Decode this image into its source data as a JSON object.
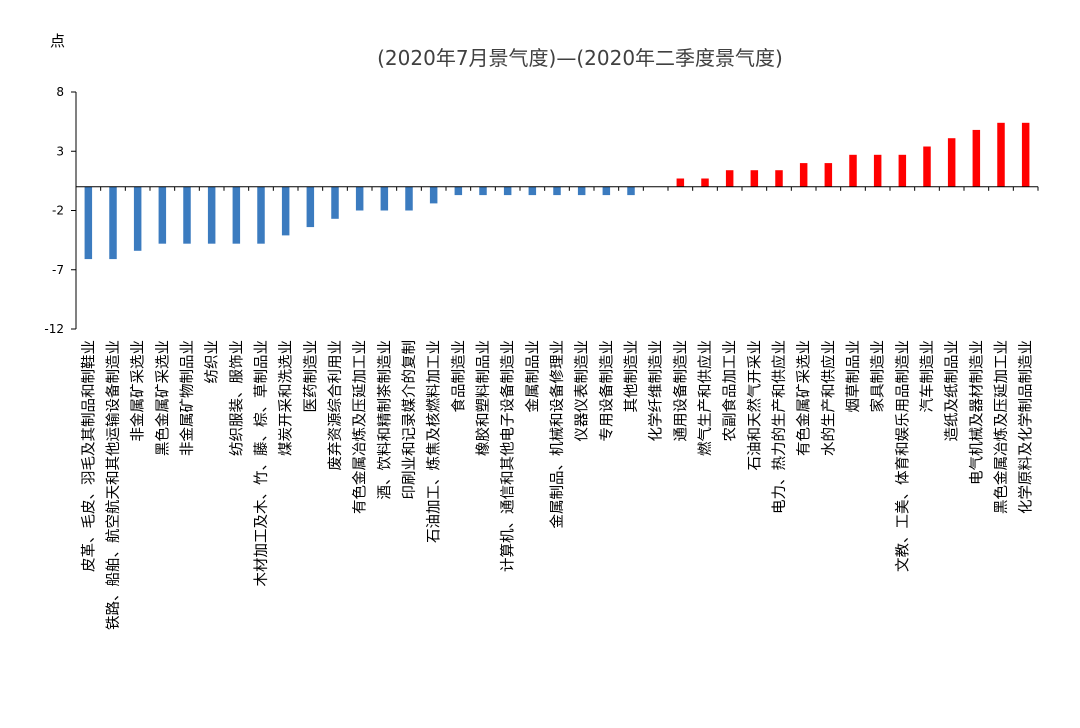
{
  "chart_data": {
    "type": "bar",
    "title": "(2020年7月景气度)—(2020年二季度景气度)",
    "ylabel": "点",
    "xlabel": "",
    "ylim": [
      -12,
      8
    ],
    "yticks": [
      8,
      3,
      -2,
      -7,
      -12
    ],
    "grid": false,
    "legend": "none",
    "colors": {
      "negative": "#3B7BBF",
      "positive": "#FF0000",
      "axis": "#000000"
    },
    "categories": [
      "皮革、毛皮、羽毛及其制品和制鞋业",
      "铁路、船舶、航空航天和其他运输设备制造业",
      "非金属矿采选业",
      "黑色金属矿采选业",
      "非金属矿物制品业",
      "纺织业",
      "纺织服装、服饰业",
      "木材加工及木、竹、藤、棕、草制品业",
      "煤炭开采和洗选业",
      "医药制造业",
      "废弃资源综合利用业",
      "有色金属冶炼及压延加工业",
      "酒、饮料和精制茶制造业",
      "印刷业和记录媒介的复制",
      "石油加工、炼焦及核燃料加工业",
      "食品制造业",
      "橡胶和塑料制品业",
      "计算机、通信和其他电子设备制造业",
      "金属制品业",
      "金属制品、机械和设备修理业",
      "仪器仪表制造业",
      "专用设备制造业",
      "其他制造业",
      "化学纤维制造业",
      "通用设备制造业",
      "燃气生产和供应业",
      "农副食品加工业",
      "石油和天然气开采业",
      "电力、热力的生产和供应业",
      "有色金属矿采选业",
      "水的生产和供应业",
      "烟草制品业",
      "家具制造业",
      "文教、工美、体育和娱乐用品制造业",
      "汽车制造业",
      "造纸及纸制品业",
      "电气机械及器材制造业",
      "黑色金属冶炼及压延加工业",
      "化学原料及化学制品制造业"
    ],
    "values": [
      -6.1,
      -6.1,
      -5.4,
      -4.8,
      -4.8,
      -4.8,
      -4.8,
      -4.8,
      -4.1,
      -3.4,
      -2.7,
      -2.0,
      -2.0,
      -2.0,
      -1.4,
      -0.7,
      -0.7,
      -0.7,
      -0.7,
      -0.7,
      -0.7,
      -0.7,
      -0.7,
      0.0,
      0.7,
      0.7,
      1.4,
      1.4,
      1.4,
      2.0,
      2.0,
      2.7,
      2.7,
      2.7,
      3.4,
      4.1,
      4.8,
      5.4,
      5.4
    ]
  }
}
